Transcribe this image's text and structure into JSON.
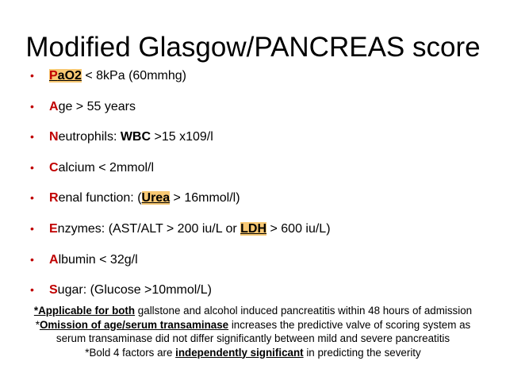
{
  "title": "Modified Glasgow/PANCREAS score",
  "bullet_marker": "•",
  "bullets": [
    {
      "first": "P",
      "rest_before": "",
      "highlight": "aO2",
      "highlight_full": "PaO2",
      "after": " < 8kPa (60mmhg)"
    },
    {
      "first": "A",
      "text": "ge > 55 years"
    },
    {
      "first": "N",
      "before": "eutrophils: ",
      "strong": "WBC",
      "after": " >15 x109/l"
    },
    {
      "first": "C",
      "text": "alcium < 2mmol/l"
    },
    {
      "first": "R",
      "before": "enal function: (",
      "strong": "Urea",
      "after": " > 16mmol/l)"
    },
    {
      "first": "E",
      "before": "nzymes: (AST/ALT > 200 iu/L or ",
      "strong": "LDH",
      "after": " > 600 iu/L)"
    },
    {
      "first": "A",
      "text": "lbumin < 32g/l"
    },
    {
      "first": "S",
      "text": "ugar: (Glucose >10mmol/L)"
    }
  ],
  "notes": {
    "line1_strong": "*Applicable for both",
    "line1_rest": " gallstone and alcohol induced pancreatitis within 48 hours of admission",
    "line2_prefix": "*",
    "line2_strong": "Omission of age/serum transaminase",
    "line2_rest": " increases the predictive valve of scoring system as",
    "line3": "serum transaminase did not differ significantly between mild and severe pancreatitis",
    "line4_prefix": "*Bold 4  factors are ",
    "line4_strong": "independently significant",
    "line4_rest": " in predicting the severity"
  },
  "colors": {
    "accent_red": "#c00000",
    "highlight": "#f7c873"
  }
}
